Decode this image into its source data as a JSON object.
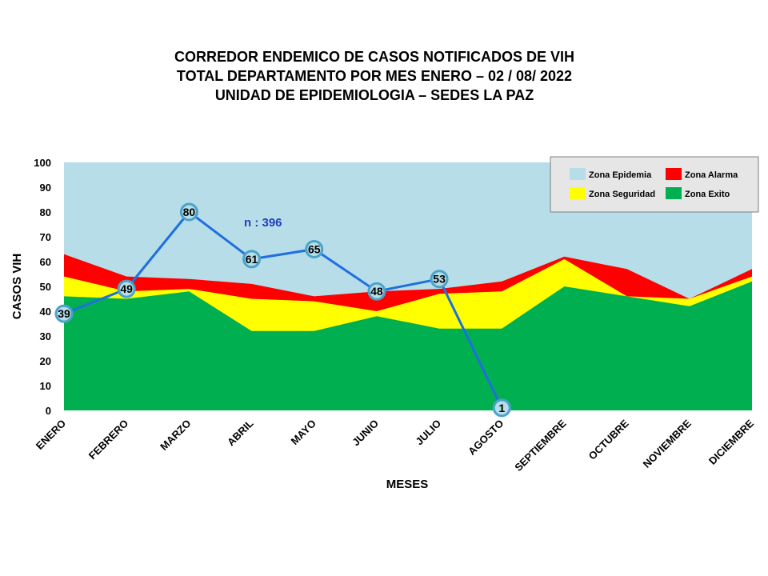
{
  "title_lines": [
    "CORREDOR ENDEMICO  DE CASOS NOTIFICADOS  DE VIH",
    "TOTAL DEPARTAMENTO  POR MES ENERO – 02 / 08/ 2022",
    "UNIDAD  DE EPIDEMIOLOGIA  – SEDES LA PAZ"
  ],
  "chart_data": {
    "type": "area",
    "categories": [
      "ENERO",
      "FEBRERO",
      "MARZO",
      "ABRIL",
      "MAYO",
      "JUNIO",
      "JULIO",
      "AGOSTO",
      "SEPTIEMBRE",
      "OCTUBRE",
      "NOVIEMBRE",
      "DICIEMBRE"
    ],
    "xlabel": "MESES",
    "ylabel": "CASOS VIH",
    "ylim": [
      0,
      100
    ],
    "yticks": [
      0,
      10,
      20,
      30,
      40,
      50,
      60,
      70,
      80,
      90,
      100
    ],
    "grid": false,
    "legend_position": "top-right",
    "zones": [
      {
        "name": "Zona Epidemia",
        "color": "#b7dde8",
        "values": [
          100,
          100,
          100,
          100,
          100,
          100,
          100,
          100,
          100,
          100,
          100,
          100
        ]
      },
      {
        "name": "Zona Alarma",
        "color": "#ff0000",
        "values": [
          63,
          54,
          53,
          51,
          46,
          48,
          49,
          52,
          62,
          57,
          45,
          57
        ]
      },
      {
        "name": "Zona Seguridad",
        "color": "#ffff00",
        "values": [
          54,
          48,
          49,
          45,
          44,
          40,
          47,
          48,
          61,
          46,
          45,
          54
        ]
      },
      {
        "name": "Zona Exito",
        "color": "#00b050",
        "values": [
          46,
          45,
          48,
          32,
          32,
          38,
          33,
          33,
          50,
          46,
          42,
          52
        ]
      }
    ],
    "series": [
      {
        "type": "line",
        "color": "#1f6fdf",
        "values": [
          39,
          49,
          80,
          61,
          65,
          48,
          53,
          1,
          null,
          null,
          null,
          null
        ]
      }
    ],
    "annotation": "n : 396"
  }
}
